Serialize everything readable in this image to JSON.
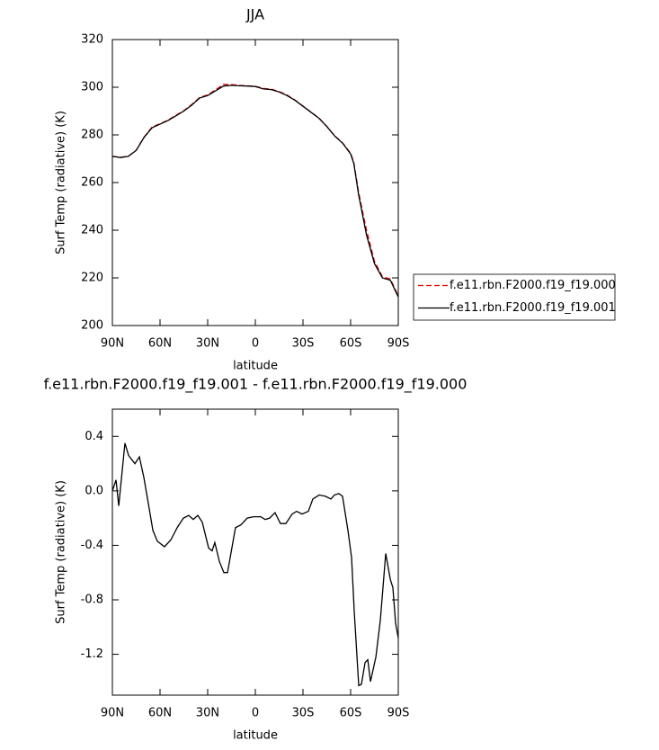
{
  "chart_data": [
    {
      "type": "line",
      "title": "JJA",
      "xlabel": "latitude",
      "ylabel": "Surf Temp (radiative) (K)",
      "x": [
        90,
        85,
        80,
        75,
        70,
        65,
        60,
        55,
        50,
        45,
        40,
        35,
        30,
        25,
        20,
        15,
        10,
        5,
        0,
        -5,
        -10,
        -15,
        -20,
        -25,
        -30,
        -35,
        -40,
        -45,
        -50,
        -55,
        -60,
        -62,
        -65,
        -70,
        -75,
        -80,
        -85,
        -90
      ],
      "xlim": [
        90,
        -90
      ],
      "xticks": [
        {
          "value": 90,
          "label": "90N"
        },
        {
          "value": 60,
          "label": "60N"
        },
        {
          "value": 30,
          "label": "30N"
        },
        0,
        {
          "value": -30,
          "label": "30S"
        },
        {
          "value": -60,
          "label": "60S"
        },
        {
          "value": -90,
          "label": "90S"
        }
      ],
      "ylim": [
        200,
        320
      ],
      "yticks": [
        200,
        220,
        240,
        260,
        280,
        300,
        320
      ],
      "legend": "right",
      "series": [
        {
          "name": "f.e11.rbn.F2000.f19_f19.000",
          "color": "#e00000",
          "dash": "dashed",
          "values": [
            271,
            270.6,
            271,
            273.6,
            279.1,
            283.3,
            284.7,
            286.2,
            288.2,
            290.2,
            292.8,
            295.7,
            296.8,
            298.9,
            301.2,
            301.1,
            300.8,
            300.6,
            300.4,
            299.5,
            299.2,
            298.2,
            296.7,
            294.6,
            292.1,
            289.6,
            287.1,
            283.6,
            279.6,
            276.6,
            272.3,
            268.5,
            256,
            240,
            227,
            220.5,
            219.5,
            212.5
          ]
        },
        {
          "name": "f.e11.rbn.F2000.f19_f19.001",
          "color": "#000000",
          "dash": "solid",
          "values": [
            271,
            270.5,
            271,
            273.5,
            279,
            283,
            284.5,
            286,
            288,
            290,
            292.5,
            295.5,
            296.5,
            298.5,
            300.5,
            300.8,
            300.6,
            300.5,
            300.3,
            299.3,
            299,
            298,
            296.5,
            294.5,
            292,
            289.5,
            287,
            283.5,
            279.5,
            276.5,
            272,
            268,
            255,
            238,
            226,
            220,
            219,
            212
          ]
        }
      ]
    },
    {
      "type": "line",
      "title": "f.e11.rbn.F2000.f19_f19.001 - f.e11.rbn.F2000.f19_f19.000",
      "xlabel": "latitude",
      "ylabel": "Surf Temp (radiative) (K)",
      "x": [
        90,
        87.7,
        86,
        82.1,
        79.8,
        75.8,
        73,
        70.2,
        67.4,
        64.5,
        61.7,
        57.2,
        53.2,
        49.2,
        45.3,
        41.9,
        39.1,
        36.2,
        33.4,
        29.4,
        27.2,
        25.5,
        22.6,
        19.8,
        17.5,
        12.5,
        9.1,
        5.1,
        1.1,
        -3.4,
        -6.2,
        -9,
        -12.4,
        -15.8,
        -19.2,
        -23.2,
        -26,
        -29.4,
        -33.4,
        -36.2,
        -40.2,
        -44.2,
        -47.6,
        -49.8,
        -52.6,
        -54.9,
        -58.3,
        -60.6,
        -62.3,
        -65.1,
        -66.8,
        -69.1,
        -70.8,
        -72.5,
        -75.9,
        -78.7,
        -82.1,
        -85,
        -86.6,
        -88.3,
        -90
      ],
      "xlim": [
        90,
        -90
      ],
      "xticks": [
        {
          "value": 90,
          "label": "90N"
        },
        {
          "value": 60,
          "label": "60N"
        },
        {
          "value": 30,
          "label": "30N"
        },
        0,
        {
          "value": -30,
          "label": "30S"
        },
        {
          "value": -60,
          "label": "60S"
        },
        {
          "value": -90,
          "label": "90S"
        }
      ],
      "ylim": [
        -1.5,
        0.6
      ],
      "yticks": [
        {
          "value": -1.2,
          "label": "-1.2"
        },
        {
          "value": -0.8,
          "label": "-0.8"
        },
        {
          "value": -0.4,
          "label": "-0.4"
        },
        {
          "value": 0,
          "label": "0.0"
        },
        0.4
      ],
      "series": [
        {
          "color": "#000000",
          "dash": "solid",
          "values": [
            0.0,
            0.08,
            -0.11,
            0.35,
            0.26,
            0.2,
            0.25,
            0.1,
            -0.09,
            -0.29,
            -0.37,
            -0.41,
            -0.36,
            -0.27,
            -0.2,
            -0.18,
            -0.21,
            -0.18,
            -0.23,
            -0.42,
            -0.44,
            -0.38,
            -0.52,
            -0.6,
            -0.6,
            -0.27,
            -0.25,
            -0.2,
            -0.19,
            -0.19,
            -0.21,
            -0.2,
            -0.16,
            -0.24,
            -0.24,
            -0.17,
            -0.15,
            -0.17,
            -0.15,
            -0.06,
            -0.03,
            -0.04,
            -0.06,
            -0.03,
            -0.02,
            -0.04,
            -0.29,
            -0.49,
            -0.89,
            -1.43,
            -1.42,
            -1.26,
            -1.24,
            -1.4,
            -1.22,
            -0.95,
            -0.46,
            -0.65,
            -0.71,
            -0.97,
            -1.08
          ]
        }
      ]
    }
  ]
}
